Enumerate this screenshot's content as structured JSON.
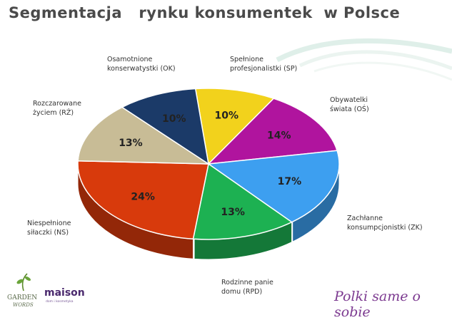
{
  "chart_data": {
    "type": "pie",
    "title": "Segmentacja   rynku konsumentek  w Polsce",
    "slices": [
      {
        "label_lines": [
          "Spełnione",
          "profesjonalistki (SP)"
        ],
        "value": 10,
        "display": "10%",
        "color": "#f2d21c"
      },
      {
        "label_lines": [
          "Obywatelki",
          "świata (OŚ)"
        ],
        "value": 14,
        "display": "14%",
        "color": "#b0149e"
      },
      {
        "label_lines": [
          "Zachłanne",
          "konsumpcjonistki (ZK)"
        ],
        "value": 17,
        "display": "17%",
        "color": "#3d9ff0"
      },
      {
        "label_lines": [
          "Rodzinne panie",
          "domu (RPD)"
        ],
        "value": 13,
        "display": "13%",
        "color": "#1db152"
      },
      {
        "label_lines": [
          "Niespełnione",
          "siłaczki (NS)"
        ],
        "value": 24,
        "display": "24%",
        "color": "#d83a0c"
      },
      {
        "label_lines": [
          "Rozczarowane",
          "życiem (RŻ)"
        ],
        "value": 13,
        "display": "13%",
        "color": "#c8bc96"
      },
      {
        "label_lines": [
          "Osamotnione",
          "konserwatystki (OK)"
        ],
        "value": 10,
        "display": "10%",
        "color": "#1b3a68"
      }
    ],
    "legend": "none",
    "style": "3d-tilted-pie"
  },
  "logos": {
    "garden_lines": [
      "GARDEN",
      "WORDS"
    ],
    "maison": "maison",
    "maison_sub": "dom i kosmetyka"
  },
  "slogan": "Polki same o sobie",
  "colors": {
    "title": "#4a4a4a",
    "slogan": "#7c3a90"
  }
}
